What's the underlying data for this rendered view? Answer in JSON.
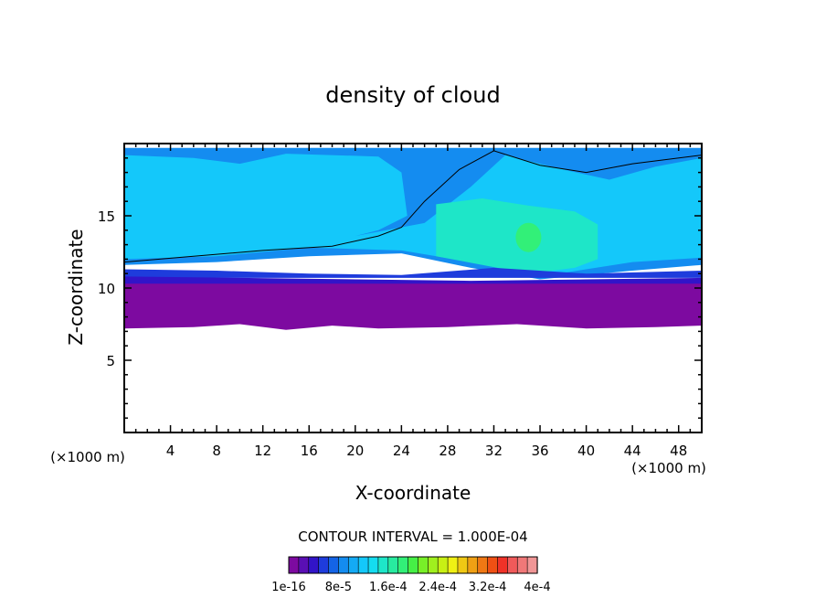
{
  "chart_data": {
    "type": "heatmap",
    "title": "density of cloud",
    "xlabel": "X-coordinate",
    "ylabel": "Z-coordinate",
    "x_unit": "(×1000 m)",
    "z_unit": "(×1000 m)",
    "xlim": [
      0,
      50
    ],
    "ylim": [
      0,
      20
    ],
    "x_ticks": [
      "4",
      "8",
      "12",
      "16",
      "20",
      "24",
      "28",
      "32",
      "36",
      "40",
      "44",
      "48"
    ],
    "y_ticks": [
      "5",
      "10",
      "15"
    ],
    "contour_interval_text": "CONTOUR INTERVAL = 1.000E-04",
    "colorbar": {
      "colors": [
        "#7d0aa0",
        "#5a0fb4",
        "#3214c8",
        "#1e3cdc",
        "#1464e6",
        "#148cf0",
        "#14aaf5",
        "#14c8fa",
        "#14dcf0",
        "#1ee6c8",
        "#28eba0",
        "#32f078",
        "#46f046",
        "#78f028",
        "#a0f01e",
        "#c8f014",
        "#f0f014",
        "#f0c814",
        "#f0a014",
        "#f07814",
        "#f05014",
        "#f03228",
        "#f05a5a",
        "#f07878",
        "#f09696"
      ],
      "labels": [
        "1e-16",
        "8e-5",
        "1.6e-4",
        "2.4e-4",
        "3.2e-4",
        "4e-4"
      ]
    },
    "bands": [
      {
        "level": "1e-16",
        "color": "#7d0aa0",
        "z_bottom": 7.2,
        "z_top": 10.2
      },
      {
        "level": "low",
        "color": "#3214c8",
        "z_bottom": 10.2,
        "z_top": 10.8
      },
      {
        "level": "low",
        "color": "#1464e6",
        "z_bottom": 10.8,
        "z_top": 11.6
      },
      {
        "level": "low",
        "color": "#148cf0",
        "z_bottom": 11.6,
        "z_top": 19.7
      },
      {
        "level": "mid",
        "color": "#14c8fa",
        "z_bottom": 12.0,
        "z_top": 19.2
      }
    ],
    "max_region": {
      "x": 35,
      "z": 13.5,
      "color": "#32f078"
    }
  }
}
